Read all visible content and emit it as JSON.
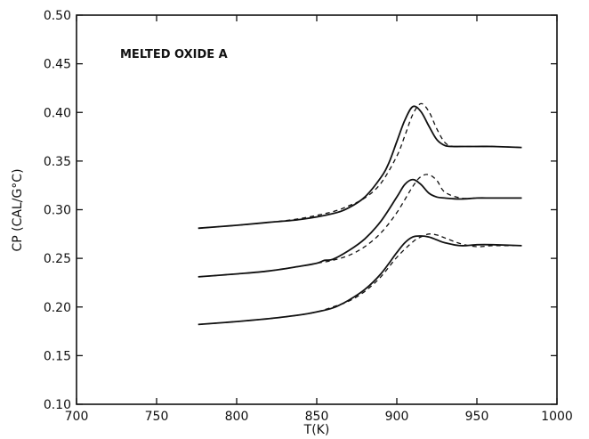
{
  "chart_data": {
    "type": "line",
    "title": "",
    "annotation": "MELTED OXIDE A",
    "xlabel": "T(K)",
    "ylabel": "CP (CAL/G°C)",
    "xlim": [
      700,
      1000
    ],
    "ylim": [
      0.1,
      0.5
    ],
    "x_ticks": [
      700,
      750,
      800,
      850,
      900,
      950,
      1000
    ],
    "x_tick_labels": [
      "700",
      "750",
      "800",
      "850",
      "900",
      "950",
      "1000"
    ],
    "y_ticks": [
      0.1,
      0.15,
      0.2,
      0.25,
      0.3,
      0.35,
      0.4,
      0.45,
      0.5
    ],
    "y_tick_labels": [
      "0.10",
      "0.15",
      "0.20",
      "0.25",
      "0.30",
      "0.35",
      "0.40",
      "0.45",
      "0.50"
    ],
    "grid": false,
    "legend": "none",
    "series": [
      {
        "style": "solid",
        "x": [
          776,
          800,
          820,
          840,
          860,
          870,
          880,
          890,
          895,
          900,
          905,
          910,
          915,
          920,
          925,
          930,
          935,
          940,
          950,
          960,
          978
        ],
        "y": [
          0.281,
          0.284,
          0.287,
          0.29,
          0.296,
          0.302,
          0.313,
          0.333,
          0.348,
          0.37,
          0.392,
          0.406,
          0.401,
          0.386,
          0.372,
          0.366,
          0.365,
          0.365,
          0.365,
          0.365,
          0.364
        ]
      },
      {
        "style": "dashed",
        "x": [
          776,
          800,
          820,
          840,
          860,
          870,
          880,
          890,
          900,
          905,
          910,
          915,
          920,
          925,
          930,
          935,
          940,
          950,
          960,
          978
        ],
        "y": [
          0.281,
          0.284,
          0.287,
          0.291,
          0.298,
          0.304,
          0.312,
          0.327,
          0.355,
          0.376,
          0.398,
          0.409,
          0.401,
          0.383,
          0.369,
          0.365,
          0.365,
          0.365,
          0.365,
          0.364
        ]
      },
      {
        "style": "solid",
        "x": [
          776,
          800,
          820,
          840,
          850,
          855,
          860,
          870,
          880,
          890,
          900,
          905,
          910,
          915,
          920,
          925,
          930,
          940,
          950,
          960,
          978
        ],
        "y": [
          0.231,
          0.234,
          0.237,
          0.242,
          0.245,
          0.248,
          0.249,
          0.258,
          0.27,
          0.288,
          0.313,
          0.326,
          0.331,
          0.326,
          0.317,
          0.313,
          0.312,
          0.311,
          0.312,
          0.312,
          0.312
        ]
      },
      {
        "style": "dashed",
        "x": [
          776,
          800,
          820,
          840,
          850,
          860,
          870,
          880,
          890,
          900,
          910,
          915,
          920,
          925,
          930,
          940,
          950,
          960,
          978
        ],
        "y": [
          0.231,
          0.234,
          0.237,
          0.242,
          0.245,
          0.248,
          0.253,
          0.262,
          0.276,
          0.297,
          0.324,
          0.334,
          0.336,
          0.33,
          0.318,
          0.312,
          0.312,
          0.312,
          0.312
        ]
      },
      {
        "style": "solid",
        "x": [
          776,
          800,
          820,
          840,
          850,
          860,
          870,
          880,
          890,
          900,
          905,
          910,
          915,
          920,
          925,
          930,
          940,
          950,
          960,
          978
        ],
        "y": [
          0.182,
          0.185,
          0.188,
          0.192,
          0.195,
          0.199,
          0.207,
          0.218,
          0.234,
          0.256,
          0.266,
          0.272,
          0.273,
          0.272,
          0.269,
          0.266,
          0.263,
          0.264,
          0.264,
          0.263
        ]
      },
      {
        "style": "dashed",
        "x": [
          776,
          800,
          820,
          840,
          850,
          860,
          870,
          880,
          890,
          900,
          910,
          915,
          920,
          925,
          930,
          940,
          950,
          960,
          978
        ],
        "y": [
          0.182,
          0.185,
          0.188,
          0.192,
          0.195,
          0.2,
          0.206,
          0.216,
          0.231,
          0.251,
          0.267,
          0.272,
          0.275,
          0.274,
          0.271,
          0.265,
          0.262,
          0.263,
          0.263
        ]
      }
    ]
  }
}
